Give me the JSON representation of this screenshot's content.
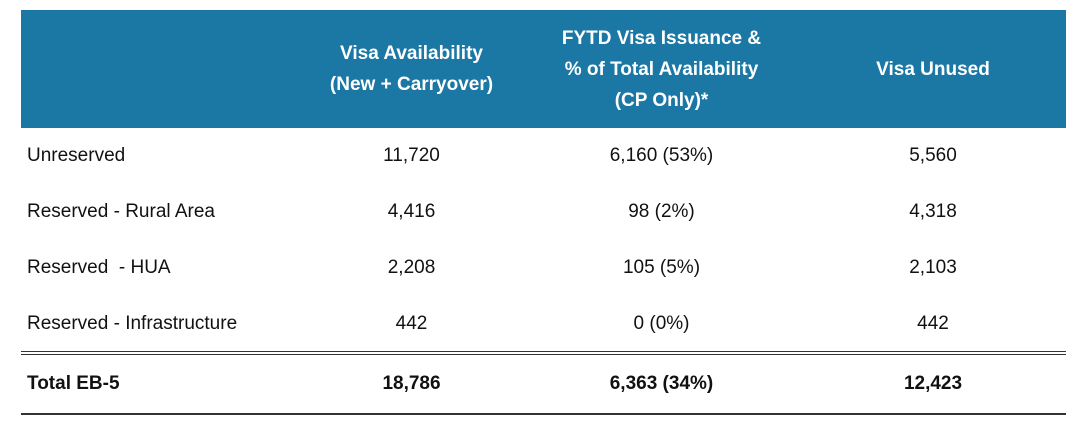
{
  "table": {
    "headers": [
      {
        "lines": []
      },
      {
        "lines": [
          "Visa Availability",
          "(New + Carryover)"
        ]
      },
      {
        "lines": [
          "FYTD Visa Issuance &",
          "% of Total Availability",
          "(CP Only)*"
        ]
      },
      {
        "lines": [
          "Visa Unused"
        ]
      }
    ],
    "rows": [
      [
        "Unreserved",
        "11,720",
        "6,160 (53%)",
        "5,560"
      ],
      [
        "Reserved - Rural Area",
        "4,416",
        "98 (2%)",
        "4,318"
      ],
      [
        "Reserved  - HUA",
        "2,208",
        "105 (5%)",
        "2,103"
      ],
      [
        "Reserved - Infrastructure",
        "442",
        "0 (0%)",
        "442"
      ]
    ],
    "total": [
      "Total EB-5",
      "18,786",
      "6,363 (34%)",
      "12,423"
    ]
  },
  "colors": {
    "header_bg": "#1b77a3",
    "header_text": "#ffffff",
    "body_text": "#111111"
  }
}
